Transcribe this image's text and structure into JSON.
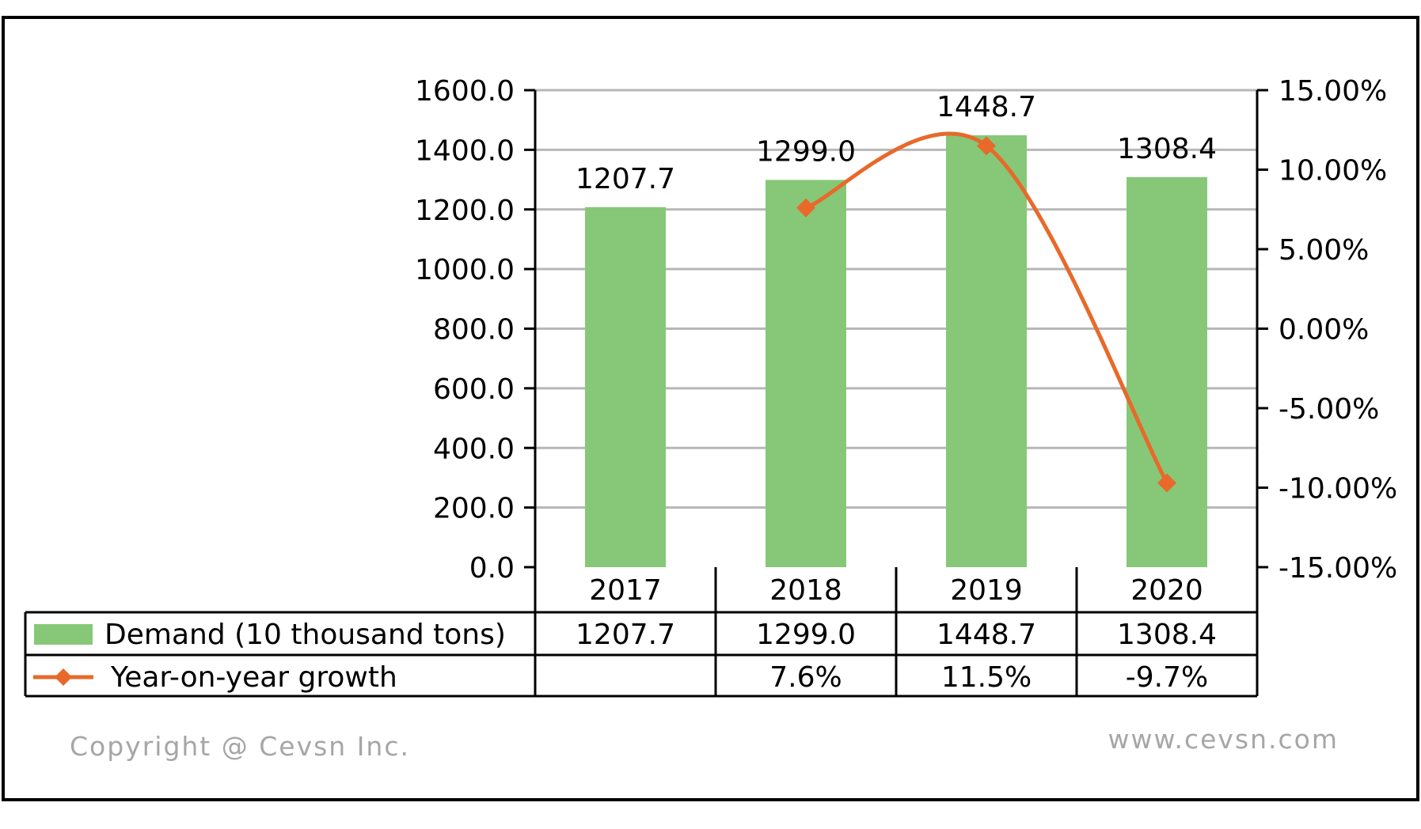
{
  "chart_data": {
    "type": "bar",
    "categories": [
      "2017",
      "2018",
      "2019",
      "2020"
    ],
    "series": [
      {
        "name": "Demand (10 thousand tons)",
        "type": "bar",
        "axis": "left",
        "values": [
          1207.7,
          1299.0,
          1448.7,
          1308.4
        ],
        "labels": [
          "1207.7",
          "1299.0",
          "1448.7",
          "1308.4"
        ],
        "color": "#86c877"
      },
      {
        "name": "Year-on-year growth",
        "type": "line",
        "axis": "right",
        "values": [
          null,
          7.6,
          11.5,
          -9.7
        ],
        "labels": [
          "",
          "7.6%",
          "11.5%",
          "-9.7%"
        ],
        "color": "#e8692a",
        "marker": "diamond",
        "smooth": true
      }
    ],
    "y_left": {
      "ylim": [
        0,
        1600
      ],
      "ticks": [
        "0.0",
        "200.0",
        "400.0",
        "600.0",
        "800.0",
        "1000.0",
        "1200.0",
        "1400.0",
        "1600.0"
      ]
    },
    "y_right": {
      "ylim": [
        -15,
        15
      ],
      "ticks": [
        "-15.00%",
        "-10.00%",
        "-5.00%",
        "0.00%",
        "5.00%",
        "10.00%",
        "15.00%"
      ]
    },
    "grid": true,
    "legend": "data-table"
  },
  "footer": {
    "copyright": "Copyright @ Cevsn Inc.",
    "website": "www.cevsn.com"
  }
}
